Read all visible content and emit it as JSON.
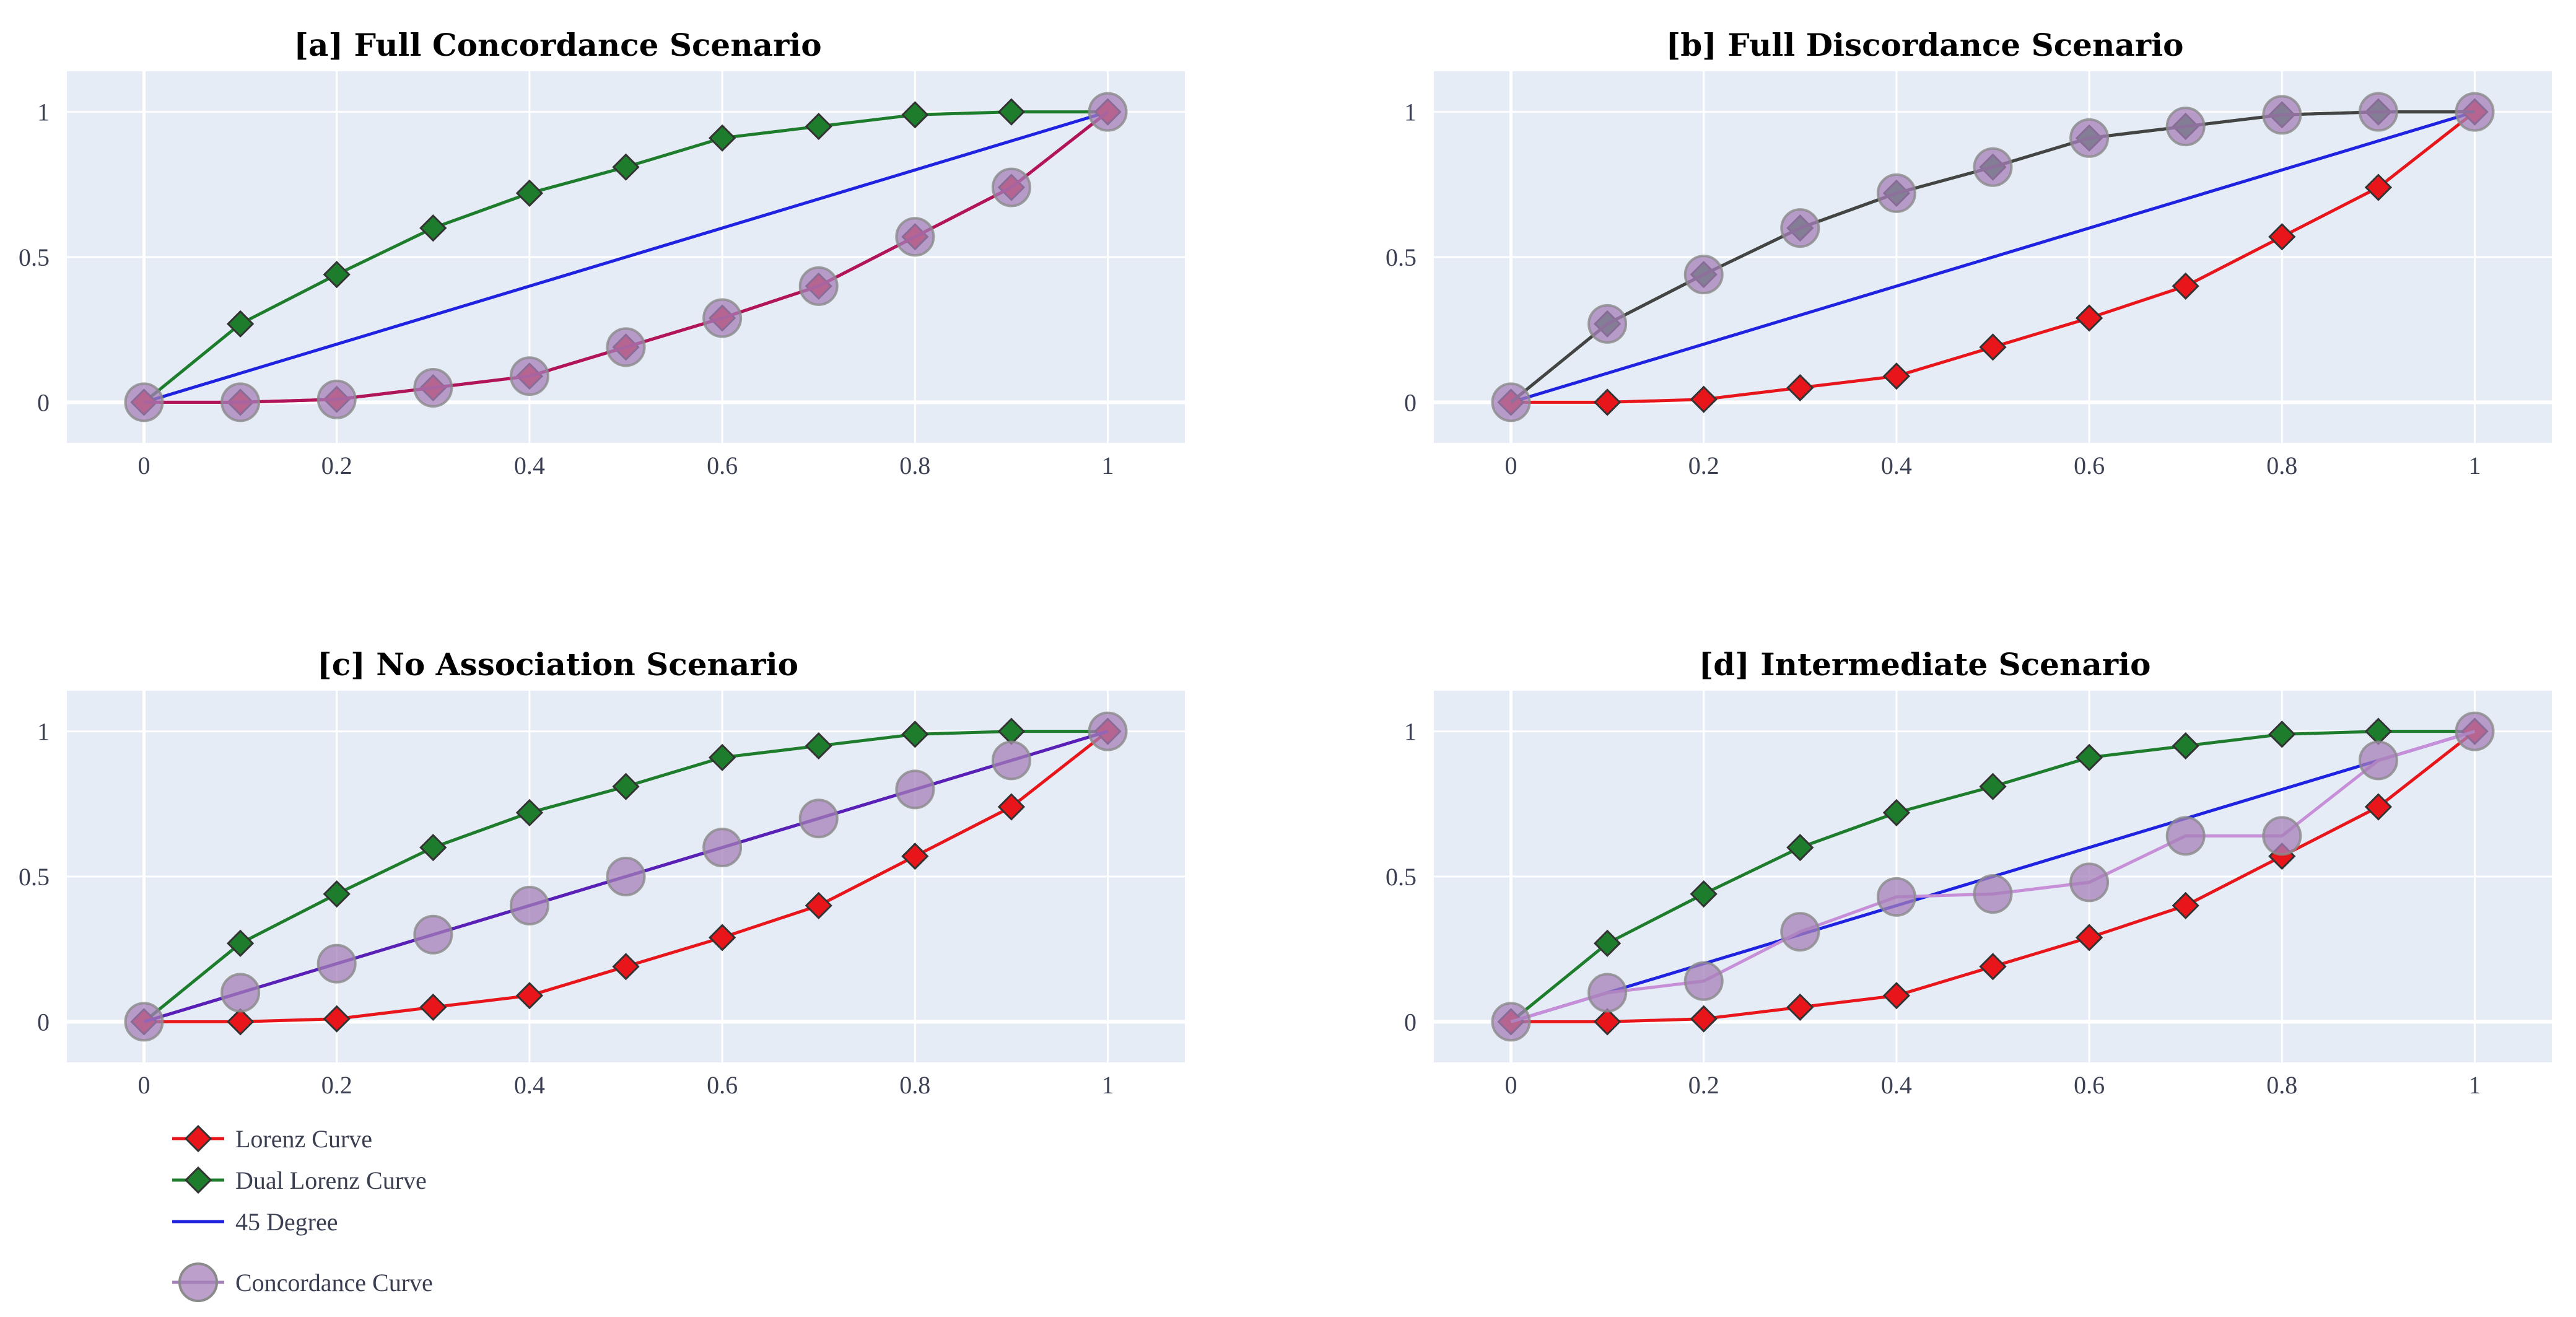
{
  "chart_data": [
    {
      "type": "line",
      "title": "[a] Full Concordance Scenario",
      "x": [
        0,
        0.1,
        0.2,
        0.3,
        0.4,
        0.5,
        0.6,
        0.7,
        0.8,
        0.9,
        1
      ],
      "xticks": [
        "0",
        "0.2",
        "0.4",
        "0.6",
        "0.8",
        "1"
      ],
      "yticks": [
        "0",
        "0.5",
        "1"
      ],
      "xlim": [
        -0.08,
        1.08
      ],
      "ylim": [
        -0.14,
        1.14
      ],
      "concordance_color": "#b0145a",
      "series": [
        {
          "name": "Dual Lorenz Curve",
          "values": [
            0,
            0.27,
            0.44,
            0.6,
            0.72,
            0.81,
            0.91,
            0.95,
            0.99,
            1.0,
            1.0
          ]
        },
        {
          "name": "45 Degree",
          "values": [
            0,
            0.1,
            0.2,
            0.3,
            0.4,
            0.5,
            0.6,
            0.7,
            0.8,
            0.9,
            1.0
          ]
        },
        {
          "name": "Lorenz Curve",
          "values": [
            0,
            0,
            0.01,
            0.05,
            0.09,
            0.19,
            0.29,
            0.4,
            0.57,
            0.74,
            1.0
          ]
        },
        {
          "name": "Concordance Curve",
          "values": [
            0,
            0,
            0.01,
            0.05,
            0.09,
            0.19,
            0.29,
            0.4,
            0.57,
            0.74,
            1.0
          ]
        }
      ]
    },
    {
      "type": "line",
      "title": "[b] Full Discordance Scenario",
      "x": [
        0,
        0.1,
        0.2,
        0.3,
        0.4,
        0.5,
        0.6,
        0.7,
        0.8,
        0.9,
        1
      ],
      "xticks": [
        "0",
        "0.2",
        "0.4",
        "0.6",
        "0.8",
        "1"
      ],
      "yticks": [
        "0",
        "0.5",
        "1"
      ],
      "xlim": [
        -0.08,
        1.08
      ],
      "ylim": [
        -0.14,
        1.14
      ],
      "concordance_color": "#444444",
      "series": [
        {
          "name": "Dual Lorenz Curve",
          "values": [
            0,
            0.27,
            0.44,
            0.6,
            0.72,
            0.81,
            0.91,
            0.95,
            0.99,
            1.0,
            1.0
          ]
        },
        {
          "name": "45 Degree",
          "values": [
            0,
            0.1,
            0.2,
            0.3,
            0.4,
            0.5,
            0.6,
            0.7,
            0.8,
            0.9,
            1.0
          ]
        },
        {
          "name": "Lorenz Curve",
          "values": [
            0,
            0,
            0.01,
            0.05,
            0.09,
            0.19,
            0.29,
            0.4,
            0.57,
            0.74,
            1.0
          ]
        },
        {
          "name": "Concordance Curve",
          "values": [
            0,
            0.27,
            0.44,
            0.6,
            0.72,
            0.81,
            0.91,
            0.95,
            0.99,
            1.0,
            1.0
          ]
        }
      ]
    },
    {
      "type": "line",
      "title": "[c] No Association Scenario",
      "x": [
        0,
        0.1,
        0.2,
        0.3,
        0.4,
        0.5,
        0.6,
        0.7,
        0.8,
        0.9,
        1
      ],
      "xticks": [
        "0",
        "0.2",
        "0.4",
        "0.6",
        "0.8",
        "1"
      ],
      "yticks": [
        "0",
        "0.5",
        "1"
      ],
      "xlim": [
        -0.08,
        1.08
      ],
      "ylim": [
        -0.14,
        1.14
      ],
      "concordance_color": "#5a1fb5",
      "series": [
        {
          "name": "Dual Lorenz Curve",
          "values": [
            0,
            0.27,
            0.44,
            0.6,
            0.72,
            0.81,
            0.91,
            0.95,
            0.99,
            1.0,
            1.0
          ]
        },
        {
          "name": "45 Degree",
          "values": [
            0,
            0.1,
            0.2,
            0.3,
            0.4,
            0.5,
            0.6,
            0.7,
            0.8,
            0.9,
            1.0
          ]
        },
        {
          "name": "Lorenz Curve",
          "values": [
            0,
            0,
            0.01,
            0.05,
            0.09,
            0.19,
            0.29,
            0.4,
            0.57,
            0.74,
            1.0
          ]
        },
        {
          "name": "Concordance Curve",
          "values": [
            0,
            0.1,
            0.2,
            0.3,
            0.4,
            0.5,
            0.6,
            0.7,
            0.8,
            0.9,
            1.0
          ]
        }
      ]
    },
    {
      "type": "line",
      "title": "[d] Intermediate Scenario",
      "x": [
        0,
        0.1,
        0.2,
        0.3,
        0.4,
        0.5,
        0.6,
        0.7,
        0.8,
        0.9,
        1
      ],
      "xticks": [
        "0",
        "0.2",
        "0.4",
        "0.6",
        "0.8",
        "1"
      ],
      "yticks": [
        "0",
        "0.5",
        "1"
      ],
      "xlim": [
        -0.08,
        1.08
      ],
      "ylim": [
        -0.14,
        1.14
      ],
      "concordance_color": "#c78fd8",
      "series": [
        {
          "name": "Dual Lorenz Curve",
          "values": [
            0,
            0.27,
            0.44,
            0.6,
            0.72,
            0.81,
            0.91,
            0.95,
            0.99,
            1.0,
            1.0
          ]
        },
        {
          "name": "45 Degree",
          "values": [
            0,
            0.1,
            0.2,
            0.3,
            0.4,
            0.5,
            0.6,
            0.7,
            0.8,
            0.9,
            1.0
          ]
        },
        {
          "name": "Lorenz Curve",
          "values": [
            0,
            0,
            0.01,
            0.05,
            0.09,
            0.19,
            0.29,
            0.4,
            0.57,
            0.74,
            1.0
          ]
        },
        {
          "name": "Concordance Curve",
          "values": [
            0,
            0.1,
            0.14,
            0.31,
            0.43,
            0.44,
            0.48,
            0.64,
            0.64,
            0.9,
            1.0
          ]
        }
      ]
    }
  ],
  "legend": {
    "items": [
      {
        "label": "Lorenz Curve",
        "symbol": "diamond"
      },
      {
        "label": "Dual Lorenz Curve",
        "symbol": "diamond"
      },
      {
        "label": "45 Degree",
        "symbol": "line"
      },
      {
        "label": "Concordance Curve",
        "symbol": "circle"
      }
    ]
  },
  "colors": {
    "plot_background": "#e5ecf6",
    "gridline": "#ffffff",
    "lorenz": "#e8151b",
    "dual_lorenz": "#1e7d2c",
    "diagonal": "#1f22e0",
    "concordance_marker": "#a57fb8",
    "marker_outline": "#333333"
  }
}
